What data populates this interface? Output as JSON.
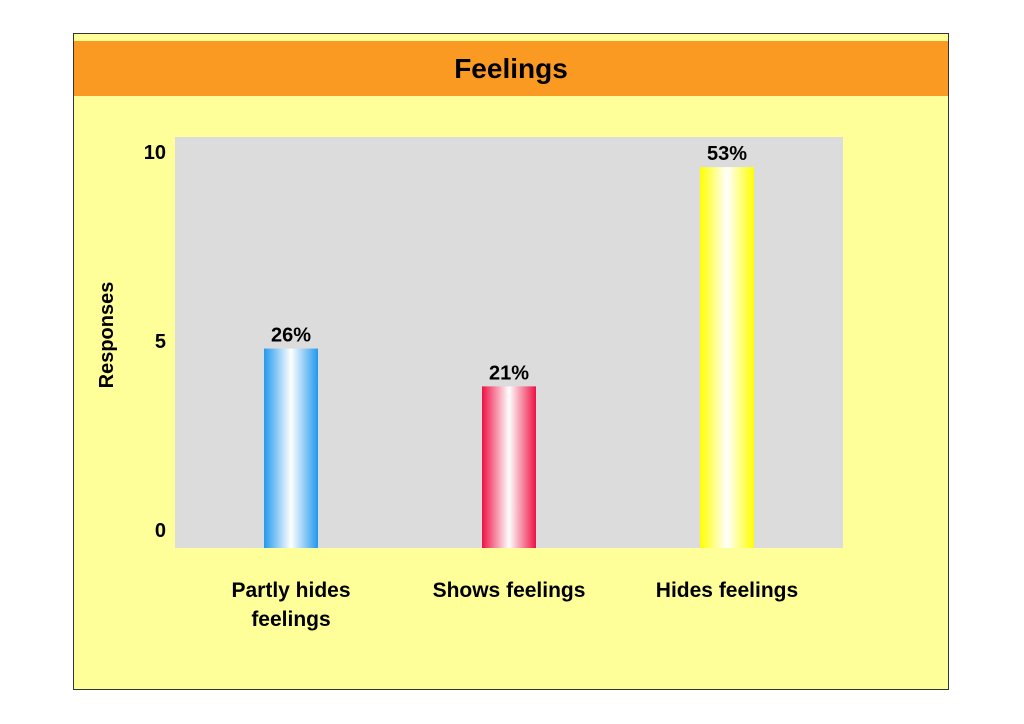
{
  "chart_data": {
    "type": "bar",
    "title": "Feelings",
    "ylabel": "Responses",
    "xlabel": "",
    "ylim": [
      0,
      10
    ],
    "yticks": [
      0,
      5,
      10
    ],
    "categories": [
      "Partly hides feelings",
      "Shows feelings",
      "Hides feelings"
    ],
    "category_label_lines": [
      [
        "Partly hides",
        "feelings"
      ],
      [
        "Shows feelings"
      ],
      [
        "Hides feelings"
      ]
    ],
    "values": [
      4.8,
      3.8,
      9.6
    ],
    "data_labels": [
      "26%",
      "21%",
      "53%"
    ],
    "colors": [
      "#2299ee",
      "#ee1144",
      "#ffff00"
    ],
    "grid": false,
    "legend": "none",
    "plot_background": "#dcdcdc",
    "page_background": "#ffff99",
    "title_background": "#fb9a22"
  }
}
